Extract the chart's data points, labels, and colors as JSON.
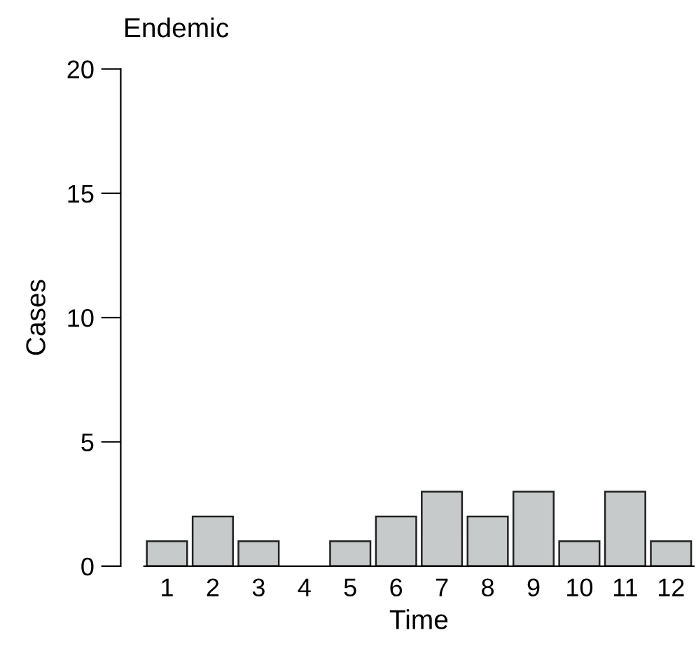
{
  "chart_data": {
    "type": "bar",
    "title": "Endemic",
    "xlabel": "Time",
    "ylabel": "Cases",
    "categories": [
      "1",
      "2",
      "3",
      "4",
      "5",
      "6",
      "7",
      "8",
      "9",
      "10",
      "11",
      "12"
    ],
    "values": [
      1,
      2,
      1,
      0,
      1,
      2,
      3,
      2,
      3,
      1,
      3,
      1
    ],
    "color": "#c6cacb",
    "ylim": [
      0,
      20
    ],
    "yticks": [
      0,
      5,
      10,
      15,
      20
    ],
    "grid": false,
    "legend": false
  }
}
